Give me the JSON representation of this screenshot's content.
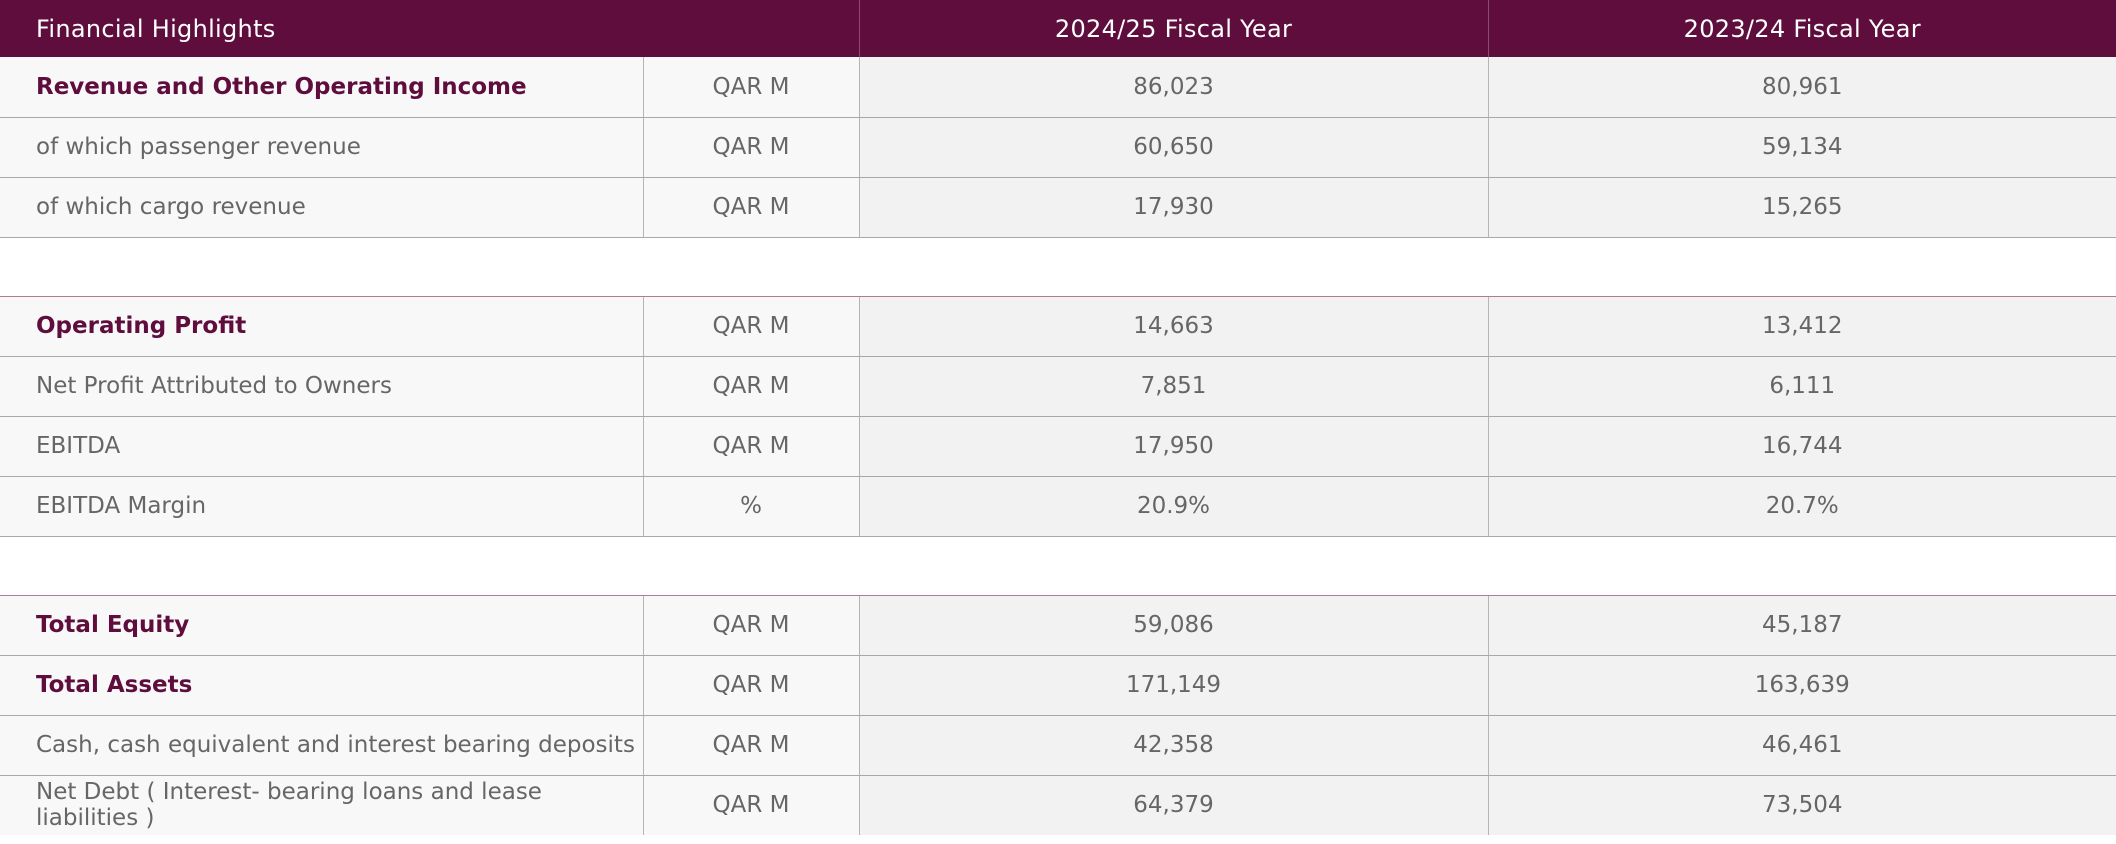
{
  "header": {
    "title": "Financial Highlights",
    "col_2024": "2024/25 Fiscal Year",
    "col_2023": "2023/24 Fiscal Year"
  },
  "rows": [
    {
      "label": "Revenue and Other Operating Income",
      "unit": "QAR M",
      "fy2024": "86,023",
      "fy2023": "80,961",
      "bold": true
    },
    {
      "label": "of which passenger revenue",
      "unit": "QAR M",
      "fy2024": "60,650",
      "fy2023": "59,134",
      "bold": false
    },
    {
      "label": "of which cargo revenue",
      "unit": "QAR M",
      "fy2024": "17,930",
      "fy2023": "15,265",
      "bold": false
    },
    {
      "spacer": true
    },
    {
      "label": "Operating Profit",
      "unit": "QAR M",
      "fy2024": "14,663",
      "fy2023": "13,412",
      "bold": true
    },
    {
      "label": "Net Profit Attributed to Owners",
      "unit": "QAR M",
      "fy2024": "7,851",
      "fy2023": "6,111",
      "bold": false
    },
    {
      "label": "EBITDA",
      "unit": "QAR M",
      "fy2024": "17,950",
      "fy2023": "16,744",
      "bold": false
    },
    {
      "label": "EBITDA Margin",
      "unit": "%",
      "fy2024": "20.9%",
      "fy2023": "20.7%",
      "bold": false
    },
    {
      "spacer": true
    },
    {
      "label": "Total Equity",
      "unit": "QAR M",
      "fy2024": "59,086",
      "fy2023": "45,187",
      "bold": true
    },
    {
      "label": "Total Assets",
      "unit": "QAR M",
      "fy2024": "171,149",
      "fy2023": "163,639",
      "bold": true
    },
    {
      "label": "Cash, cash equivalent and interest bearing deposits",
      "unit": "QAR M",
      "fy2024": "42,358",
      "fy2023": "46,461",
      "bold": false
    },
    {
      "label": "Net Debt ( Interest- bearing loans and lease liabilities )",
      "unit": "QAR M",
      "fy2024": "64,379",
      "fy2023": "73,504",
      "bold": false
    }
  ],
  "colors": {
    "header_bg": "#5e0d3d",
    "bold_text": "#5e0d3d",
    "body_text": "#666666"
  }
}
